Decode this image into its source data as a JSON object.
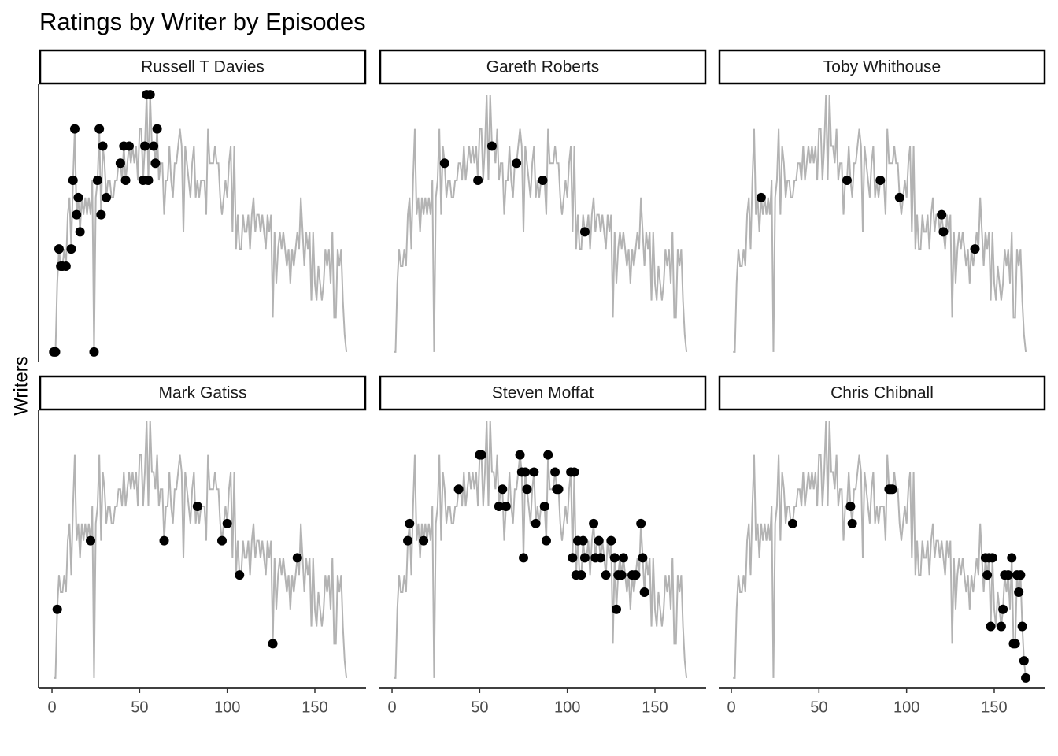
{
  "chart_data": {
    "type": "scatter",
    "title": "Ratings by Writer by Episodes",
    "y_label": "Writers",
    "xlim": [
      -7.2,
      179.2
    ],
    "ylim": [
      75.4,
      91.6
    ],
    "xticks": [
      0,
      50,
      100,
      150
    ],
    "background": {
      "color": "#b3b3b3",
      "x": [
        1,
        2,
        3,
        4,
        5,
        6,
        7,
        8,
        9,
        10,
        11,
        12,
        13,
        14,
        15,
        16,
        17,
        18,
        19,
        20,
        21,
        22,
        23,
        24,
        25,
        26,
        27,
        28,
        29,
        30,
        31,
        32,
        33,
        34,
        35,
        36,
        37,
        38,
        39,
        40,
        41,
        42,
        43,
        44,
        45,
        46,
        47,
        48,
        49,
        50,
        51,
        52,
        53,
        54,
        55,
        56,
        57,
        58,
        59,
        60,
        61,
        62,
        63,
        64,
        65,
        66,
        67,
        68,
        69,
        70,
        71,
        72,
        73,
        74,
        75,
        76,
        77,
        78,
        79,
        80,
        81,
        82,
        83,
        84,
        85,
        86,
        87,
        88,
        89,
        90,
        91,
        92,
        93,
        94,
        95,
        96,
        97,
        98,
        99,
        100,
        101,
        102,
        103,
        104,
        105,
        106,
        107,
        108,
        109,
        110,
        111,
        112,
        113,
        114,
        115,
        116,
        117,
        118,
        119,
        120,
        121,
        122,
        123,
        124,
        125,
        126,
        127,
        128,
        129,
        130,
        131,
        132,
        133,
        134,
        135,
        136,
        137,
        138,
        139,
        140,
        141,
        142,
        143,
        144,
        145,
        146,
        147,
        148,
        149,
        150,
        151,
        152,
        153,
        154,
        155,
        156,
        157,
        158,
        159,
        160,
        161,
        162,
        163,
        164,
        165,
        166,
        167,
        168
      ],
      "values": [
        76,
        76,
        80,
        82,
        81,
        81,
        82,
        81,
        84,
        85,
        82,
        86,
        89,
        84,
        85,
        83,
        85,
        84,
        85,
        84,
        85,
        84,
        86,
        76,
        85,
        86,
        89,
        84,
        88,
        87,
        85,
        86,
        86,
        85,
        85,
        86,
        86,
        87,
        87,
        86,
        88,
        86,
        87,
        88,
        87,
        88,
        87,
        88,
        86,
        89,
        89,
        86,
        88,
        91,
        86,
        91,
        88,
        88,
        87,
        89,
        86,
        87,
        87,
        84,
        86,
        86,
        88,
        86,
        85,
        87,
        87,
        88,
        89,
        88,
        83,
        88,
        87,
        86,
        85,
        87,
        88,
        85,
        86,
        85,
        86,
        86,
        86,
        84,
        89,
        87,
        87,
        87,
        88,
        87,
        87,
        85,
        84,
        85,
        86,
        85,
        87,
        88,
        83,
        88,
        82,
        84,
        82,
        82,
        84,
        83,
        83,
        84,
        82,
        84,
        85,
        83,
        84,
        84,
        83,
        84,
        83,
        82,
        84,
        83,
        84,
        78,
        83,
        80,
        82,
        83,
        82,
        83,
        82,
        81,
        82,
        80,
        82,
        81,
        82,
        83,
        82,
        85,
        83,
        81,
        83,
        82,
        83,
        79,
        83,
        80,
        79,
        81,
        80,
        79,
        80,
        82,
        81,
        82,
        80,
        83,
        78,
        78,
        82,
        81,
        82,
        79,
        77,
        76
      ]
    },
    "series": [
      {
        "name": "Russell T Davies",
        "color": "#000000",
        "x": [
          1,
          2,
          4,
          5,
          6,
          8,
          11,
          12,
          13,
          14,
          15,
          16,
          24,
          26,
          27,
          28,
          29,
          31,
          39,
          41,
          42,
          44,
          52,
          53,
          54,
          55,
          56,
          58,
          59,
          60
        ],
        "values": [
          76,
          76,
          82,
          81,
          81,
          81,
          82,
          86,
          89,
          84,
          85,
          83,
          76,
          86,
          89,
          84,
          88,
          85,
          87,
          88,
          86,
          88,
          86,
          88,
          91,
          86,
          91,
          88,
          87,
          89
        ]
      },
      {
        "name": "Gareth Roberts",
        "color": "#000000",
        "x": [
          30,
          49,
          57,
          71,
          86,
          110
        ],
        "values": [
          87,
          86,
          88,
          87,
          86,
          83
        ]
      },
      {
        "name": "Toby Whithouse",
        "color": "#000000",
        "x": [
          17,
          66,
          85,
          96,
          120,
          121,
          139
        ],
        "values": [
          85,
          86,
          86,
          85,
          84,
          83,
          82
        ]
      },
      {
        "name": "Mark Gatiss",
        "color": "#000000",
        "x": [
          3,
          22,
          64,
          83,
          97,
          100,
          107,
          126,
          140
        ],
        "values": [
          80,
          84,
          84,
          86,
          84,
          85,
          82,
          78,
          83
        ]
      },
      {
        "name": "Steven Moffat",
        "color": "#000000",
        "x": [
          9,
          10,
          18,
          38,
          50,
          51,
          61,
          63,
          65,
          73,
          74,
          75,
          76,
          77,
          81,
          82,
          87,
          88,
          89,
          93,
          94,
          95,
          102,
          103,
          104,
          105,
          106,
          108,
          109,
          110,
          115,
          116,
          118,
          119,
          122,
          125,
          127,
          128,
          129,
          131,
          132,
          137,
          139,
          142,
          143,
          144
        ],
        "values": [
          84,
          85,
          84,
          87,
          89,
          89,
          86,
          87,
          86,
          89,
          88,
          83,
          88,
          87,
          88,
          85,
          86,
          84,
          89,
          88,
          87,
          87,
          88,
          83,
          88,
          82,
          84,
          82,
          84,
          83,
          85,
          83,
          84,
          83,
          82,
          84,
          83,
          80,
          82,
          82,
          83,
          82,
          82,
          85,
          83,
          81
        ]
      },
      {
        "name": "Chris Chibnall",
        "color": "#000000",
        "x": [
          35,
          68,
          69,
          90,
          91,
          92,
          145,
          146,
          147,
          148,
          149,
          154,
          155,
          156,
          158,
          160,
          161,
          162,
          163,
          164,
          165,
          166,
          167,
          168
        ],
        "values": [
          85,
          86,
          85,
          87,
          87,
          87,
          83,
          82,
          83,
          79,
          83,
          79,
          80,
          82,
          82,
          83,
          78,
          78,
          82,
          81,
          82,
          79,
          77,
          76
        ]
      }
    ]
  }
}
